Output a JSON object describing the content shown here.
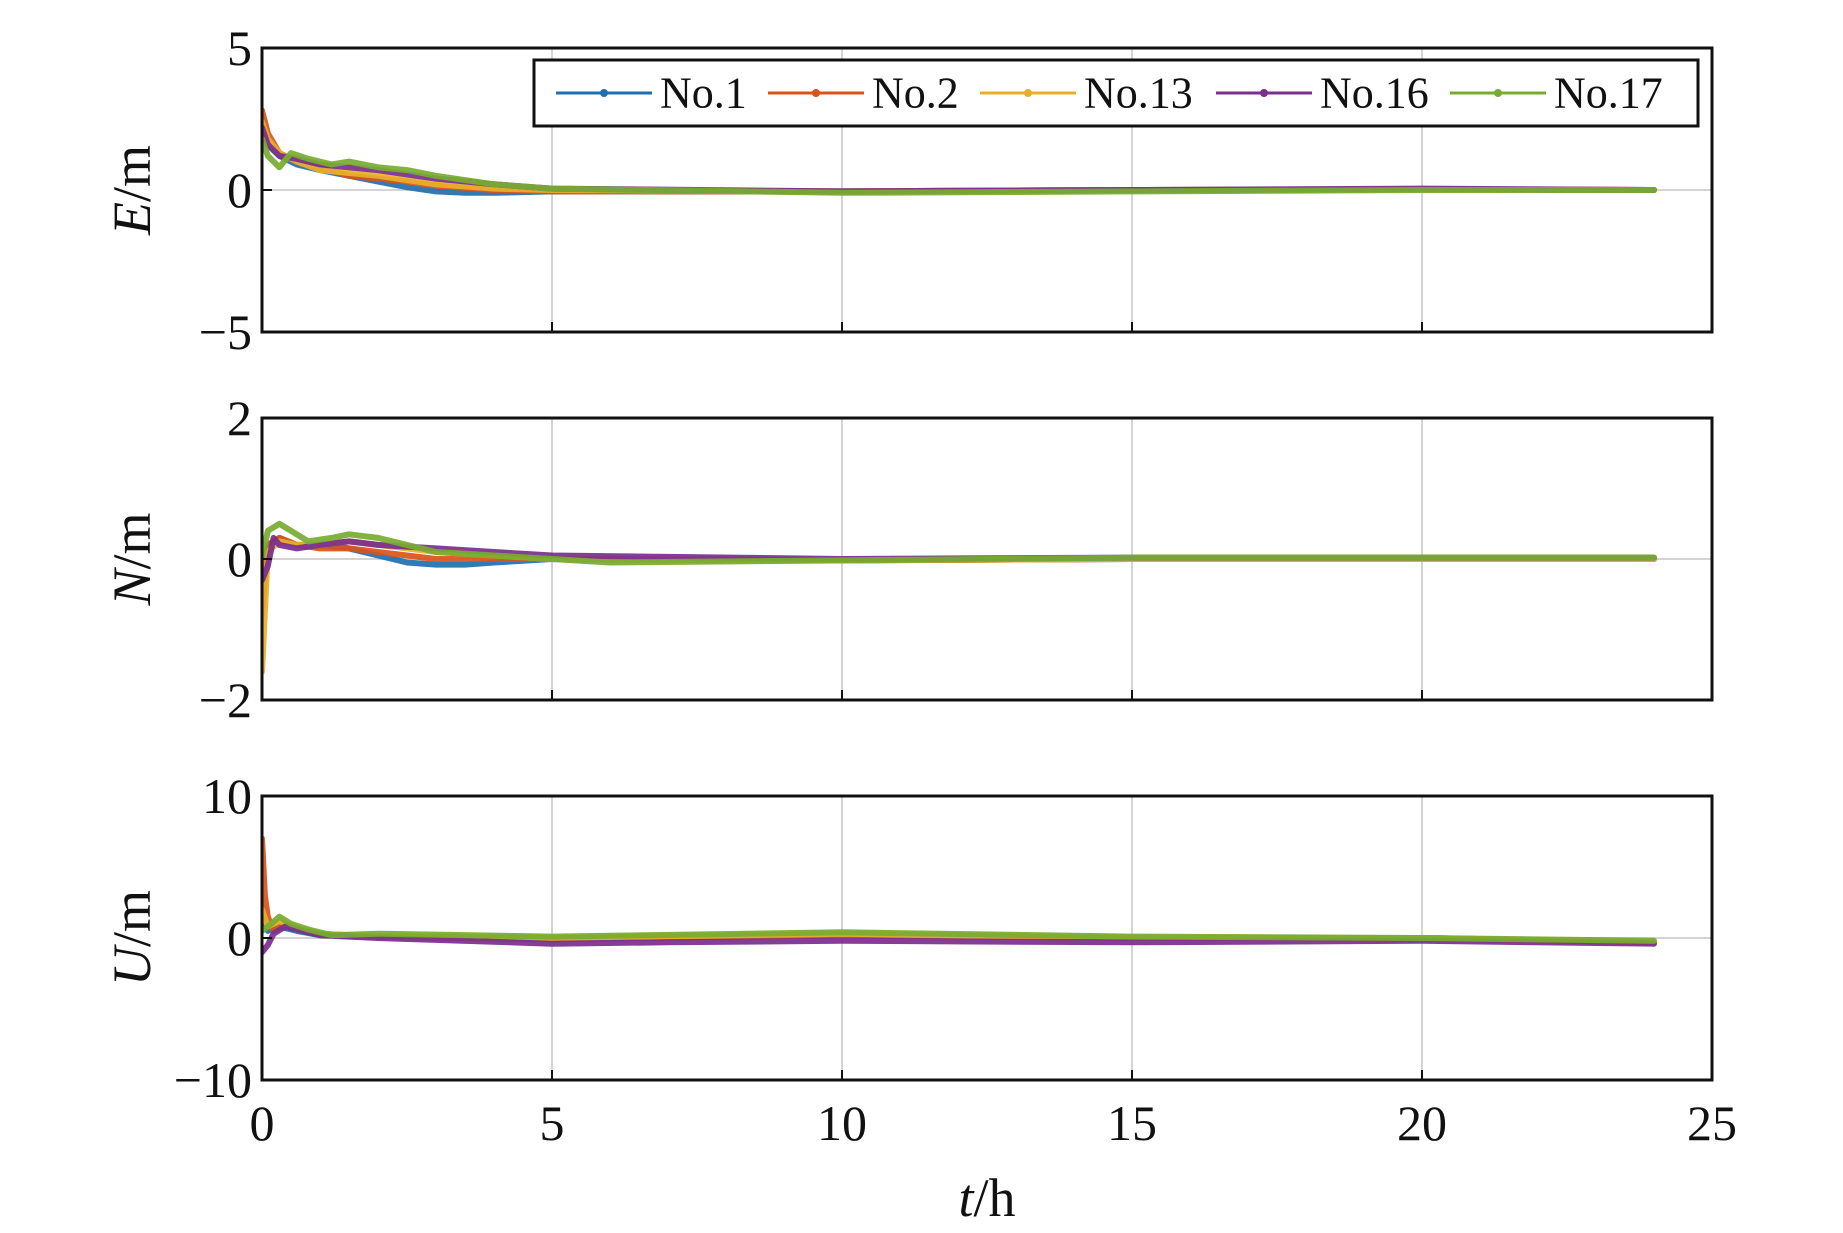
{
  "chart_data": [
    {
      "type": "line",
      "ylabel_var": "E",
      "ylabel_unit": "/m",
      "ylim": [
        -5,
        5
      ],
      "yticks": [
        5,
        0,
        -5
      ],
      "ytick_labels": [
        "5",
        "0",
        "−5"
      ],
      "xlim": [
        0,
        25
      ],
      "xticks": [
        0,
        5,
        10,
        15,
        20,
        25
      ],
      "grid": true,
      "legend": {
        "placement": "top-right",
        "entries": [
          "No.1",
          "No.2",
          "No.13",
          "No.16",
          "No.17"
        ]
      },
      "series": [
        {
          "name": "No.1",
          "color": "#1f6fb0",
          "x": [
            0,
            0.1,
            0.3,
            0.6,
            1.0,
            1.5,
            2.0,
            2.5,
            3.0,
            3.5,
            4.0,
            5.0,
            10,
            15,
            20,
            24
          ],
          "y": [
            2.0,
            1.6,
            1.2,
            0.9,
            0.7,
            0.5,
            0.3,
            0.1,
            -0.05,
            -0.1,
            -0.1,
            -0.05,
            -0.05,
            0.0,
            0.02,
            0.0
          ]
        },
        {
          "name": "No.2",
          "color": "#d9541a",
          "x": [
            0,
            0.1,
            0.3,
            0.6,
            1.0,
            1.5,
            2.0,
            2.5,
            3.0,
            4.0,
            5.0,
            10,
            15,
            20,
            24
          ],
          "y": [
            2.8,
            2.0,
            1.3,
            1.0,
            0.8,
            0.5,
            0.4,
            0.3,
            0.15,
            0.0,
            -0.05,
            -0.05,
            0.0,
            0.02,
            0.0
          ]
        },
        {
          "name": "No.13",
          "color": "#e8b02a",
          "x": [
            0,
            0.1,
            0.3,
            0.6,
            1.0,
            1.5,
            2.0,
            3.0,
            4.0,
            5.0,
            10,
            15,
            20,
            24
          ],
          "y": [
            2.4,
            1.8,
            1.3,
            1.0,
            0.7,
            0.6,
            0.5,
            0.2,
            0.05,
            0.0,
            -0.05,
            0.0,
            0.02,
            0.0
          ]
        },
        {
          "name": "No.16",
          "color": "#7a2e8e",
          "x": [
            0,
            0.1,
            0.3,
            0.6,
            1.0,
            1.5,
            2.0,
            3.0,
            4.0,
            5.0,
            10,
            15,
            20,
            24
          ],
          "y": [
            2.2,
            1.6,
            1.2,
            1.1,
            0.9,
            0.8,
            0.7,
            0.4,
            0.2,
            0.05,
            -0.05,
            0.0,
            0.05,
            0.0
          ]
        },
        {
          "name": "No.17",
          "color": "#77ac30",
          "x": [
            0,
            0.1,
            0.3,
            0.5,
            0.8,
            1.2,
            1.5,
            2.0,
            2.5,
            3.0,
            4.0,
            5.0,
            10,
            15,
            20,
            24
          ],
          "y": [
            1.8,
            1.2,
            0.8,
            1.3,
            1.1,
            0.9,
            1.0,
            0.8,
            0.7,
            0.5,
            0.2,
            0.05,
            -0.1,
            -0.05,
            0.0,
            0.0
          ]
        }
      ]
    },
    {
      "type": "line",
      "ylabel_var": "N",
      "ylabel_unit": "/m",
      "ylim": [
        -2,
        2
      ],
      "yticks": [
        2,
        0,
        -2
      ],
      "ytick_labels": [
        "2",
        "0",
        "−2"
      ],
      "xlim": [
        0,
        25
      ],
      "xticks": [
        0,
        5,
        10,
        15,
        20,
        25
      ],
      "grid": true,
      "series": [
        {
          "name": "No.1",
          "color": "#1f6fb0",
          "x": [
            0,
            0.1,
            0.3,
            0.6,
            1.0,
            1.5,
            2.0,
            2.5,
            3.0,
            3.5,
            4.0,
            5.0,
            10,
            15,
            20,
            24
          ],
          "y": [
            -0.4,
            0.2,
            0.3,
            0.2,
            0.2,
            0.15,
            0.05,
            -0.05,
            -0.08,
            -0.08,
            -0.05,
            0.0,
            -0.02,
            0.0,
            0.0,
            0.0
          ]
        },
        {
          "name": "No.2",
          "color": "#d9541a",
          "x": [
            0,
            0.1,
            0.3,
            0.6,
            1.0,
            1.5,
            2.0,
            2.5,
            3.0,
            4.0,
            5.0,
            10,
            15,
            20,
            24
          ],
          "y": [
            -0.8,
            0.2,
            0.3,
            0.2,
            0.15,
            0.15,
            0.1,
            0.05,
            0.0,
            0.0,
            0.0,
            -0.02,
            0.0,
            0.0,
            0.0
          ]
        },
        {
          "name": "No.13",
          "color": "#e8b02a",
          "x": [
            0,
            0.1,
            0.3,
            0.6,
            1.0,
            1.5,
            2.0,
            3.0,
            4.0,
            5.0,
            10,
            15,
            20,
            24
          ],
          "y": [
            -1.6,
            0.1,
            0.25,
            0.2,
            0.2,
            0.25,
            0.2,
            0.1,
            0.05,
            0.0,
            -0.02,
            0.0,
            0.0,
            0.0
          ]
        },
        {
          "name": "No.16",
          "color": "#7a2e8e",
          "x": [
            0,
            0.1,
            0.2,
            0.3,
            0.6,
            1.0,
            1.5,
            2.0,
            3.0,
            4.0,
            5.0,
            10,
            15,
            20,
            24
          ],
          "y": [
            -0.3,
            -0.1,
            0.3,
            0.2,
            0.15,
            0.2,
            0.25,
            0.2,
            0.15,
            0.1,
            0.05,
            0.0,
            0.02,
            0.02,
            0.02
          ]
        },
        {
          "name": "No.17",
          "color": "#77ac30",
          "x": [
            0,
            0.1,
            0.3,
            0.5,
            0.8,
            1.2,
            1.5,
            2.0,
            2.5,
            3.0,
            4.0,
            5.0,
            6.0,
            10,
            15,
            20,
            24
          ],
          "y": [
            0.0,
            0.4,
            0.5,
            0.4,
            0.25,
            0.3,
            0.35,
            0.3,
            0.2,
            0.1,
            0.05,
            0.0,
            -0.05,
            -0.02,
            0.02,
            0.02,
            0.02
          ]
        }
      ]
    },
    {
      "type": "line",
      "ylabel_var": "U",
      "ylabel_unit": "/m",
      "xlabel_var": "t",
      "xlabel_unit": "/h",
      "ylim": [
        -10,
        10
      ],
      "yticks": [
        10,
        0,
        -10
      ],
      "ytick_labels": [
        "10",
        "0",
        "−10"
      ],
      "xlim": [
        0,
        25
      ],
      "xticks": [
        0,
        5,
        10,
        15,
        20,
        25
      ],
      "xtick_labels": [
        "0",
        "5",
        "10",
        "15",
        "20",
        "25"
      ],
      "grid": true,
      "series": [
        {
          "name": "No.1",
          "color": "#1f6fb0",
          "x": [
            0,
            0.1,
            0.3,
            0.6,
            1.0,
            2.0,
            5.0,
            10,
            15,
            20,
            24
          ],
          "y": [
            1.5,
            0.5,
            0.8,
            0.5,
            0.2,
            0.1,
            0.0,
            0.2,
            0.0,
            0.0,
            -0.3
          ]
        },
        {
          "name": "No.2",
          "color": "#d9541a",
          "x": [
            0,
            0.05,
            0.1,
            0.2,
            0.4,
            0.7,
            1.0,
            2.0,
            5.0,
            10,
            15,
            20,
            24
          ],
          "y": [
            7.0,
            3.0,
            1.5,
            0.5,
            1.0,
            0.6,
            0.3,
            0.1,
            -0.1,
            0.2,
            0.0,
            0.0,
            -0.3
          ]
        },
        {
          "name": "No.13",
          "color": "#e8b02a",
          "x": [
            0,
            0.1,
            0.3,
            0.6,
            1.0,
            2.0,
            5.0,
            10,
            15,
            20,
            24
          ],
          "y": [
            2.0,
            0.8,
            1.2,
            0.7,
            0.3,
            0.1,
            0.0,
            0.3,
            0.0,
            0.0,
            -0.3
          ]
        },
        {
          "name": "No.16",
          "color": "#7a2e8e",
          "x": [
            0,
            0.1,
            0.2,
            0.4,
            0.7,
            1.0,
            2.0,
            5.0,
            7.0,
            10,
            15,
            20,
            24
          ],
          "y": [
            -1.0,
            -0.5,
            0.3,
            0.8,
            0.5,
            0.2,
            0.0,
            -0.4,
            -0.3,
            -0.2,
            -0.3,
            -0.2,
            -0.4
          ]
        },
        {
          "name": "No.17",
          "color": "#77ac30",
          "x": [
            0,
            0.1,
            0.3,
            0.5,
            0.8,
            1.2,
            2.0,
            5.0,
            10,
            15,
            20,
            24
          ],
          "y": [
            0.5,
            0.8,
            1.5,
            1.0,
            0.6,
            0.2,
            0.3,
            0.1,
            0.4,
            0.1,
            0.0,
            -0.2
          ]
        }
      ]
    }
  ]
}
